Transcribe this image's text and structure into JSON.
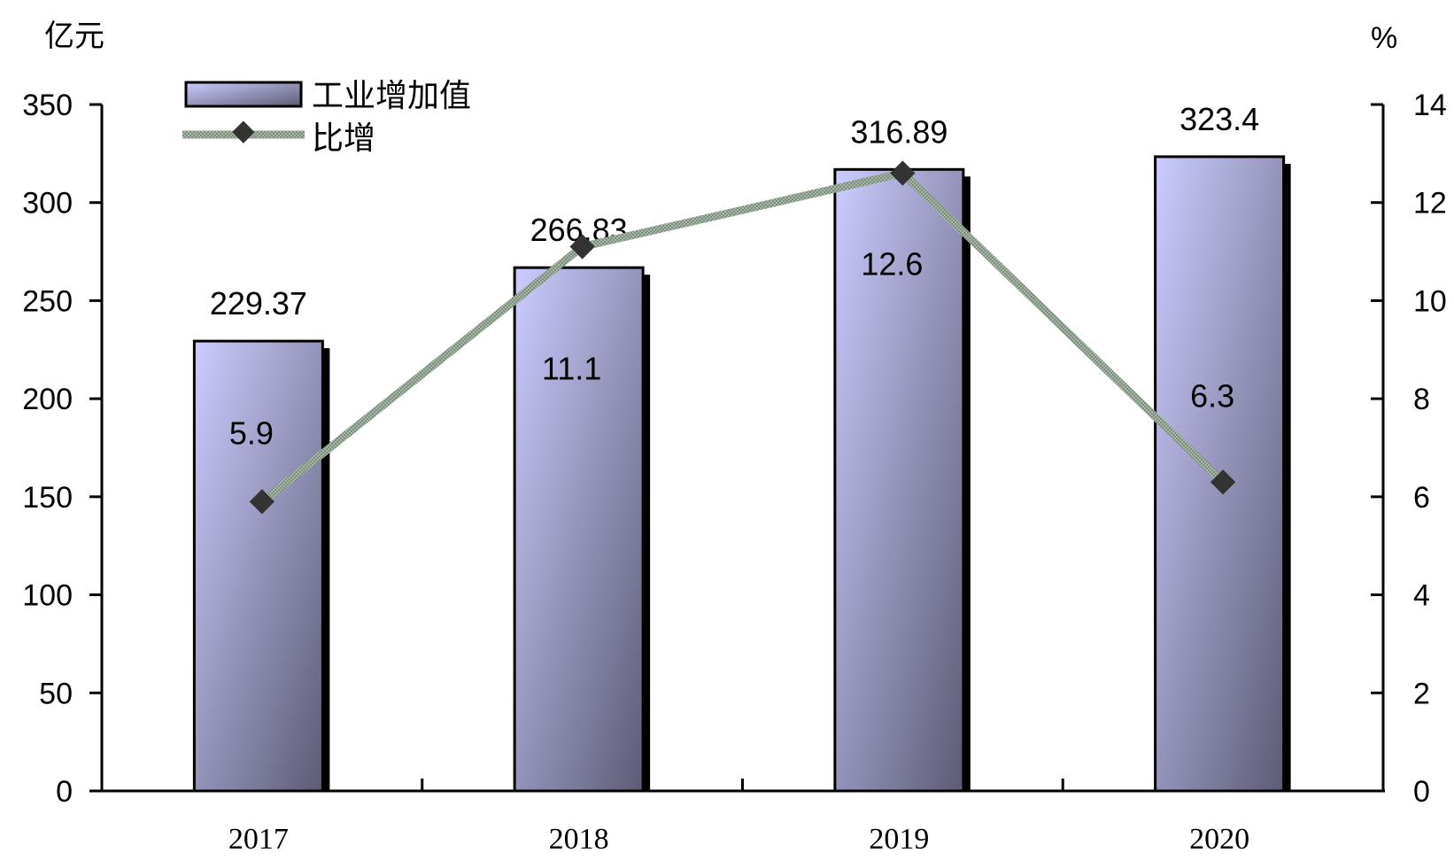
{
  "chart_data": {
    "type": "bar",
    "categories": [
      "2017",
      "2018",
      "2019",
      "2020"
    ],
    "y_left_unit": "亿元",
    "y_right_unit": "%",
    "y_left_lim": [
      0,
      350
    ],
    "y_left_ticks": [
      "0",
      "50",
      "100",
      "150",
      "200",
      "250",
      "300",
      "350"
    ],
    "y_right_lim": [
      0,
      14
    ],
    "y_right_ticks": [
      "0",
      "2",
      "4",
      "6",
      "8",
      "10",
      "12",
      "14"
    ],
    "grid": false,
    "legend_position": "top-left",
    "series": [
      {
        "name": "工业增加值",
        "type": "bar",
        "axis": "left",
        "values": [
          229.37,
          266.83,
          316.89,
          323.4
        ],
        "labels": [
          "229.37",
          "266.83",
          "316.89",
          "323.4"
        ]
      },
      {
        "name": "比增",
        "type": "line",
        "axis": "right",
        "values": [
          5.9,
          11.1,
          12.6,
          6.3
        ],
        "labels": [
          "5.9",
          "11.1",
          "12.6",
          "6.3"
        ]
      }
    ],
    "colors": {
      "bar_light": "#ccccff",
      "bar_dark": "#5c5c75",
      "line": "#8a9a8a",
      "marker": "#333333"
    }
  }
}
